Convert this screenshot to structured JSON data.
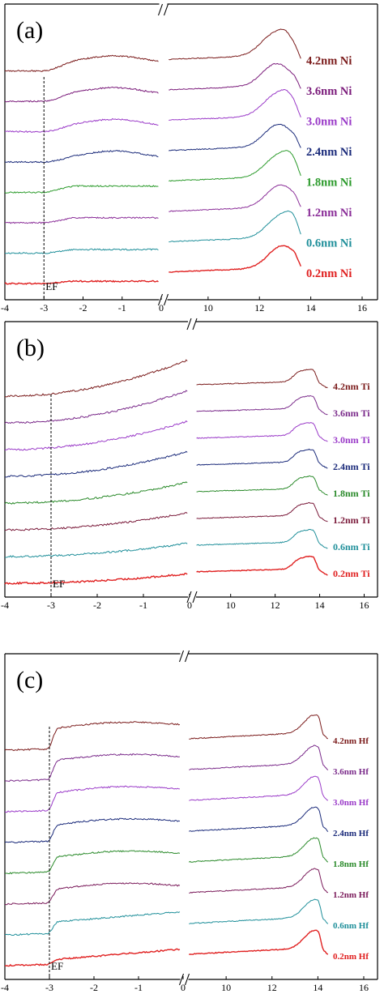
{
  "chart_data": [
    {
      "type": "line",
      "panel_label": "(a)",
      "ef_label": "EF",
      "ef_x": -3,
      "x_ticks_left": [
        "-4",
        "-3",
        "-2",
        "-1",
        "0"
      ],
      "x_ticks_right": [
        "10",
        "12",
        "14",
        "16"
      ],
      "xlim_left": [
        -4,
        0
      ],
      "xlim_right": [
        8.3,
        16.6
      ],
      "series": [
        {
          "name": "0.2nm Ni",
          "color": "#e02020",
          "offset": 0,
          "shape": "ni",
          "thick": 2
        },
        {
          "name": "0.6nm Ni",
          "color": "#1f8f9a",
          "offset": 1,
          "shape": "ni",
          "thick": 1
        },
        {
          "name": "1.2nm Ni",
          "color": "#8a2d98",
          "offset": 2,
          "shape": "ni",
          "thick": 1
        },
        {
          "name": "1.8nm Ni",
          "color": "#2a9a2a",
          "offset": 3,
          "shape": "ni",
          "thick": 1
        },
        {
          "name": "2.4nm Ni",
          "color": "#1a2a7a",
          "offset": 4,
          "shape": "ni",
          "thick": 1
        },
        {
          "name": "3.0nm Ni",
          "color": "#9a3ac8",
          "offset": 5,
          "shape": "ni",
          "thick": 1
        },
        {
          "name": "3.6nm Ni",
          "color": "#7a1a7a",
          "offset": 6,
          "shape": "ni",
          "thick": 1
        },
        {
          "name": "4.2nm Ni",
          "color": "#7a1a1a",
          "offset": 7,
          "shape": "ni",
          "thick": 1
        }
      ]
    },
    {
      "type": "line",
      "panel_label": "(b)",
      "ef_label": "EF",
      "ef_x": -3,
      "x_ticks_left": [
        "-4",
        "-3",
        "-2",
        "-1",
        "0"
      ],
      "x_ticks_right": [
        "10",
        "12",
        "14",
        "16"
      ],
      "xlim_left": [
        -4,
        0
      ],
      "xlim_right": [
        8.3,
        16.6
      ],
      "series": [
        {
          "name": "0.2nm Ti",
          "color": "#e02020",
          "offset": 0,
          "shape": "ti",
          "thick": 2
        },
        {
          "name": "0.6nm Ti",
          "color": "#1f8f9a",
          "offset": 1,
          "shape": "ti",
          "thick": 1
        },
        {
          "name": "1.2nm Ti",
          "color": "#7a1a3a",
          "offset": 2,
          "shape": "ti",
          "thick": 1
        },
        {
          "name": "1.8nm Ti",
          "color": "#2a8a2a",
          "offset": 3,
          "shape": "ti",
          "thick": 1
        },
        {
          "name": "2.4nm Ti",
          "color": "#1a2a7a",
          "offset": 4,
          "shape": "ti",
          "thick": 1
        },
        {
          "name": "3.0nm Ti",
          "color": "#9a3ac8",
          "offset": 5,
          "shape": "ti",
          "thick": 1
        },
        {
          "name": "3.6nm Ti",
          "color": "#7a2a8a",
          "offset": 6,
          "shape": "ti",
          "thick": 1
        },
        {
          "name": "4.2nm Ti",
          "color": "#7a1a1a",
          "offset": 7,
          "shape": "ti",
          "thick": 1
        }
      ]
    },
    {
      "type": "line",
      "panel_label": "(c)",
      "ef_label": "EF",
      "ef_x": -3,
      "x_ticks_left": [
        "-4",
        "-3",
        "-2",
        "-1",
        "0"
      ],
      "x_ticks_right": [
        "10",
        "12",
        "14",
        "16"
      ],
      "xlim_left": [
        -4,
        0
      ],
      "xlim_right": [
        8.3,
        16.6
      ],
      "series": [
        {
          "name": "0.2nm Hf",
          "color": "#e02020",
          "offset": 0,
          "shape": "hf",
          "thick": 2
        },
        {
          "name": "0.6nm Hf",
          "color": "#1f8f9a",
          "offset": 1,
          "shape": "hf",
          "thick": 1
        },
        {
          "name": "1.2nm Hf",
          "color": "#7a1a5a",
          "offset": 2,
          "shape": "hf",
          "thick": 1
        },
        {
          "name": "1.8nm Hf",
          "color": "#2a8a2a",
          "offset": 3,
          "shape": "hf",
          "thick": 1
        },
        {
          "name": "2.4nm Hf",
          "color": "#1a2a7a",
          "offset": 4,
          "shape": "hf",
          "thick": 1
        },
        {
          "name": "3.0nm Hf",
          "color": "#9a3ac8",
          "offset": 5,
          "shape": "hf",
          "thick": 1
        },
        {
          "name": "3.6nm Hf",
          "color": "#7a2a8a",
          "offset": 6,
          "shape": "hf",
          "thick": 1
        },
        {
          "name": "4.2nm Hf",
          "color": "#7a1a1a",
          "offset": 7,
          "shape": "hf",
          "thick": 1
        }
      ]
    }
  ]
}
